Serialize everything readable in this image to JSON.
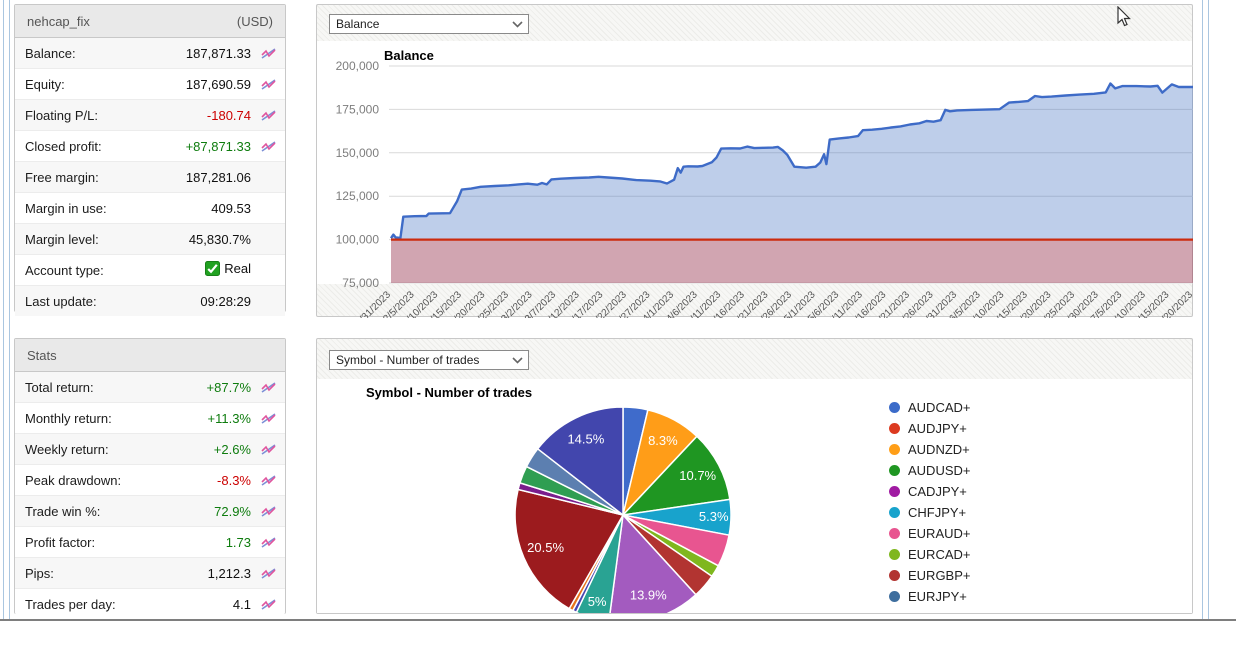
{
  "account_panel": {
    "title": "nehcap_fix",
    "currency": "(USD)",
    "rows": [
      {
        "label": "Balance:",
        "value": "187,871.33",
        "color": "black",
        "icon": true
      },
      {
        "label": "Equity:",
        "value": "187,690.59",
        "color": "black",
        "icon": true
      },
      {
        "label": "Floating P/L:",
        "value": "-180.74",
        "color": "red",
        "icon": true
      },
      {
        "label": "Closed profit:",
        "value": "+87,871.33",
        "color": "green",
        "icon": true
      },
      {
        "label": "Free margin:",
        "value": "187,281.06",
        "color": "black",
        "icon": false
      },
      {
        "label": "Margin in use:",
        "value": "409.53",
        "color": "black",
        "icon": false
      },
      {
        "label": "Margin level:",
        "value": "45,830.7%",
        "color": "black",
        "icon": false
      },
      {
        "label": "Account type:",
        "value": "Real",
        "color": "black",
        "icon": false,
        "checkbox": true
      },
      {
        "label": "Last update:",
        "value": "09:28:29",
        "color": "black",
        "icon": false
      }
    ]
  },
  "stats_panel": {
    "title": "Stats",
    "rows": [
      {
        "label": "Total return:",
        "value": "+87.7%",
        "color": "green",
        "icon": true
      },
      {
        "label": "Monthly return:",
        "value": "+11.3%",
        "color": "green",
        "icon": true
      },
      {
        "label": "Weekly return:",
        "value": "+2.6%",
        "color": "green",
        "icon": true
      },
      {
        "label": "Peak drawdown:",
        "value": "-8.3%",
        "color": "red",
        "icon": true
      },
      {
        "label": "Trade win %:",
        "value": "72.9%",
        "color": "green",
        "icon": true
      },
      {
        "label": "Profit factor:",
        "value": "1.73",
        "color": "green",
        "icon": true
      },
      {
        "label": "Pips:",
        "value": "1,212.3",
        "color": "black",
        "icon": true
      },
      {
        "label": "Trades per day:",
        "value": "4.1",
        "color": "black",
        "icon": true
      }
    ]
  },
  "balance_card": {
    "dropdown_value": "Balance"
  },
  "pie_card": {
    "dropdown_value": "Symbol - Number of trades"
  },
  "chart_data": [
    {
      "type": "area",
      "title": "Balance",
      "ylim": [
        75000,
        200000
      ],
      "y_ticks": [
        {
          "v": 200000,
          "label": "200,000"
        },
        {
          "v": 175000,
          "label": "175,000"
        },
        {
          "v": 150000,
          "label": "150,000"
        },
        {
          "v": 125000,
          "label": "125,000"
        },
        {
          "v": 100000,
          "label": "100,000"
        },
        {
          "v": 75000,
          "label": "75,000"
        }
      ],
      "baseline": 100000,
      "x_range_days": [
        0,
        170
      ],
      "x_tick_labels": [
        "1/31/2023",
        "2/5/2023",
        "2/10/2023",
        "2/15/2023",
        "2/20/2023",
        "2/25/2023",
        "3/2/2023",
        "3/7/2023",
        "3/12/2023",
        "3/17/2023",
        "3/22/2023",
        "3/27/2023",
        "4/1/2023",
        "4/6/2023",
        "4/11/2023",
        "4/16/2023",
        "4/21/2023",
        "4/26/2023",
        "5/1/2023",
        "5/6/2023",
        "5/11/2023",
        "5/16/2023",
        "5/21/2023",
        "5/26/2023",
        "5/31/2023",
        "6/5/2023",
        "6/10/2023",
        "6/15/2023",
        "6/20/2023",
        "6/25/2023",
        "6/30/2023",
        "7/5/2023",
        "7/10/2023",
        "7/15/2023",
        "7/20/2023"
      ],
      "grid": true,
      "line_color": "#3e6bc7",
      "fill_color": "rgba(68,114,196,0.35)",
      "baseline_color": "#cc2b0e",
      "below_baseline_fill": "rgba(140,30,60,0.4)",
      "series": [
        {
          "name": "Balance",
          "points": [
            [
              0,
              100800
            ],
            [
              0.5,
              102900
            ],
            [
              1,
              101200
            ],
            [
              2,
              100900
            ],
            [
              2.6,
              113200
            ],
            [
              5,
              113500
            ],
            [
              7.5,
              113600
            ],
            [
              8,
              115000
            ],
            [
              12.5,
              115200
            ],
            [
              14,
              122000
            ],
            [
              15,
              128800
            ],
            [
              17,
              129400
            ],
            [
              19,
              130400
            ],
            [
              22,
              130900
            ],
            [
              25,
              131300
            ],
            [
              27,
              131800
            ],
            [
              29,
              132200
            ],
            [
              30,
              131900
            ],
            [
              31,
              131600
            ],
            [
              32,
              132600
            ],
            [
              33,
              131800
            ],
            [
              34,
              134700
            ],
            [
              36,
              135100
            ],
            [
              39,
              135500
            ],
            [
              42,
              135800
            ],
            [
              44,
              136200
            ],
            [
              46,
              135800
            ],
            [
              49,
              135200
            ],
            [
              52,
              134300
            ],
            [
              55,
              133900
            ],
            [
              57,
              133500
            ],
            [
              58.5,
              132300
            ],
            [
              60,
              134500
            ],
            [
              60.8,
              141200
            ],
            [
              61.4,
              138600
            ],
            [
              62,
              142000
            ],
            [
              63,
              142200
            ],
            [
              65,
              142100
            ],
            [
              66,
              142400
            ],
            [
              68,
              144500
            ],
            [
              69,
              147300
            ],
            [
              70,
              152400
            ],
            [
              72,
              152600
            ],
            [
              74,
              152500
            ],
            [
              75.5,
              153600
            ],
            [
              77,
              152700
            ],
            [
              79,
              152900
            ],
            [
              81,
              153000
            ],
            [
              82,
              153400
            ],
            [
              83,
              151500
            ],
            [
              84,
              148800
            ],
            [
              85.5,
              142000
            ],
            [
              88,
              141400
            ],
            [
              90,
              142000
            ],
            [
              91,
              144400
            ],
            [
              91.8,
              149200
            ],
            [
              92.3,
              143500
            ],
            [
              93,
              157600
            ],
            [
              95,
              158300
            ],
            [
              97,
              158800
            ],
            [
              99,
              159600
            ],
            [
              100,
              163000
            ],
            [
              102,
              163300
            ],
            [
              104,
              163800
            ],
            [
              106,
              164600
            ],
            [
              108,
              165200
            ],
            [
              110,
              166300
            ],
            [
              112,
              167000
            ],
            [
              113.5,
              168300
            ],
            [
              115,
              167900
            ],
            [
              116.5,
              168800
            ],
            [
              117.5,
              174700
            ],
            [
              118.5,
              173900
            ],
            [
              120,
              174400
            ],
            [
              123,
              174700
            ],
            [
              126,
              174900
            ],
            [
              129,
              175100
            ],
            [
              131,
              178900
            ],
            [
              133,
              179300
            ],
            [
              135,
              179800
            ],
            [
              136.5,
              182700
            ],
            [
              138,
              182100
            ],
            [
              140,
              182400
            ],
            [
              143,
              183000
            ],
            [
              146,
              183500
            ],
            [
              149,
              184000
            ],
            [
              151.5,
              184800
            ],
            [
              152.5,
              189900
            ],
            [
              153.5,
              187100
            ],
            [
              155,
              188400
            ],
            [
              158,
              188400
            ],
            [
              161,
              188200
            ],
            [
              162.5,
              188600
            ],
            [
              163.5,
              184700
            ],
            [
              165.5,
              189400
            ],
            [
              167,
              187900
            ],
            [
              170,
              187900
            ]
          ]
        }
      ]
    },
    {
      "type": "pie",
      "title": "Symbol - Number of trades",
      "start_angle_deg": 0,
      "direction": "clockwise",
      "slices": [
        {
          "name": "AUDCAD+",
          "pct": 3.7,
          "color": "#3f6bcb",
          "label": ""
        },
        {
          "name": "AUDNZD+",
          "pct": 8.3,
          "color": "#ff9d18",
          "label": "8.3%"
        },
        {
          "name": "AUDUSD+",
          "pct": 10.7,
          "color": "#1f9622",
          "label": "10.7%"
        },
        {
          "name": "CHFJPY+",
          "pct": 5.3,
          "color": "#18a3cc",
          "label": "5.3%"
        },
        {
          "name": "EURAUD+",
          "pct": 4.8,
          "color": "#e85590",
          "label": ""
        },
        {
          "name": "EURCAD+",
          "pct": 1.8,
          "color": "#7fb71e",
          "label": ""
        },
        {
          "name": "EURGBP+",
          "pct": 3.6,
          "color": "#b23431",
          "label": ""
        },
        {
          "name": "",
          "pct": 13.9,
          "color": "#a35bbf",
          "label": "13.9%"
        },
        {
          "name": "",
          "pct": 5.0,
          "color": "#29a393",
          "label": "5%"
        },
        {
          "name": "",
          "pct": 0.6,
          "color": "#4845b0",
          "label": ""
        },
        {
          "name": "",
          "pct": 0.6,
          "color": "#e8731c",
          "label": ""
        },
        {
          "name": "",
          "pct": 20.5,
          "color": "#9c1b1e",
          "label": "20.5%"
        },
        {
          "name": "",
          "pct": 1.0,
          "color": "#7a1e8c",
          "label": ""
        },
        {
          "name": "",
          "pct": 2.6,
          "color": "#2f9e52",
          "label": ""
        },
        {
          "name": "",
          "pct": 3.1,
          "color": "#5c7fb0",
          "label": ""
        },
        {
          "name": "",
          "pct": 14.5,
          "color": "#4246ad",
          "label": "14.5%"
        }
      ],
      "legend_position": "right",
      "legend": [
        {
          "name": "AUDCAD+",
          "color": "#3b6bc9"
        },
        {
          "name": "AUDJPY+",
          "color": "#dc3a20"
        },
        {
          "name": "AUDNZD+",
          "color": "#ff9e17"
        },
        {
          "name": "AUDUSD+",
          "color": "#1f9622"
        },
        {
          "name": "CADJPY+",
          "color": "#a01ba2"
        },
        {
          "name": "CHFJPY+",
          "color": "#18a3cc"
        },
        {
          "name": "EURAUD+",
          "color": "#e85590"
        },
        {
          "name": "EURCAD+",
          "color": "#7fb71e"
        },
        {
          "name": "EURGBP+",
          "color": "#b23431"
        },
        {
          "name": "EURJPY+",
          "color": "#3e6e9e"
        }
      ]
    }
  ]
}
